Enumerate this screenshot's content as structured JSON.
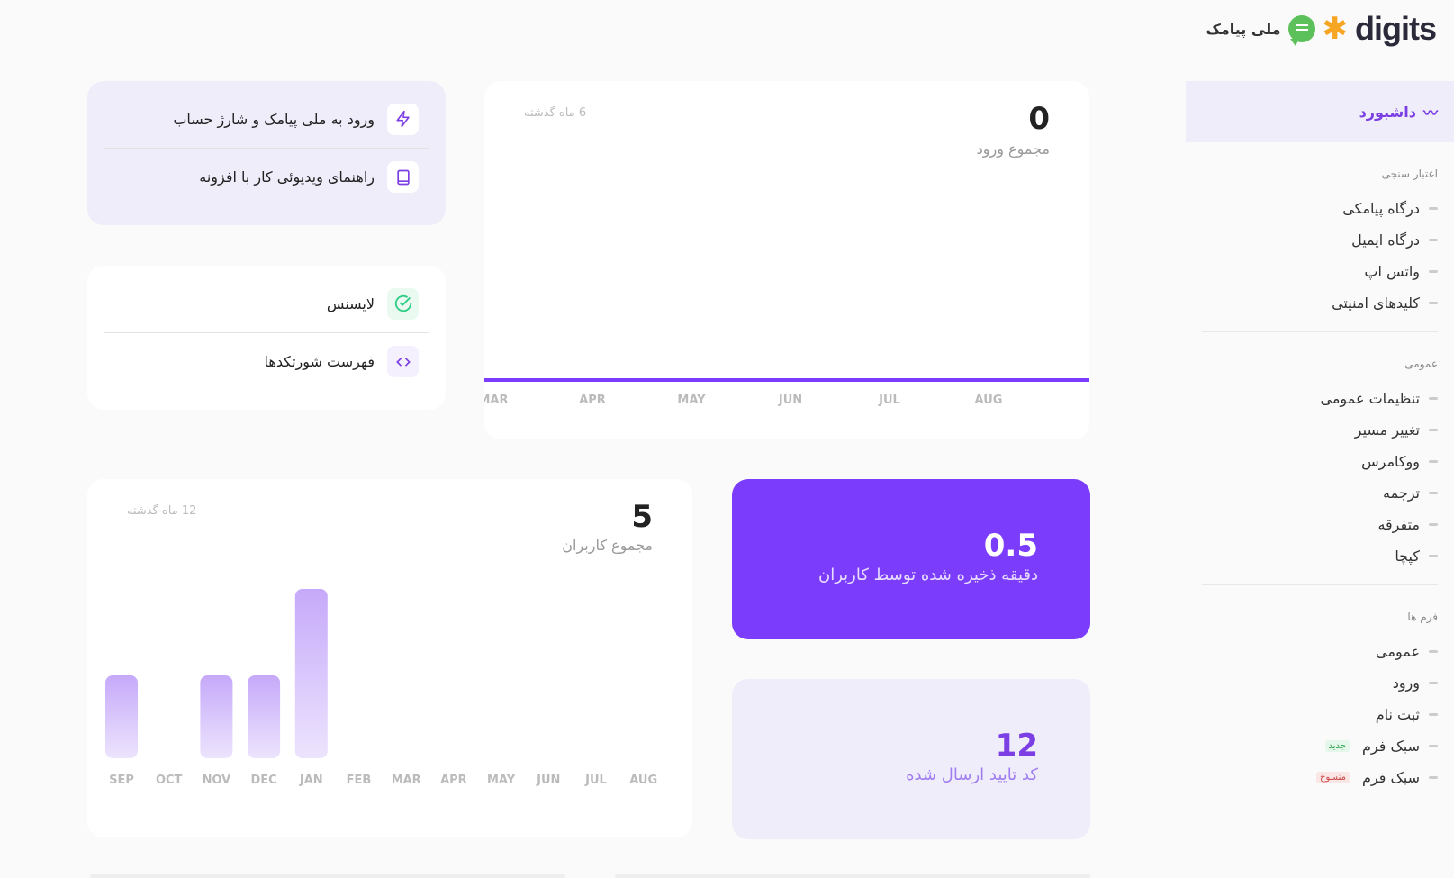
{
  "header": {
    "brand": "digits",
    "partner": "ملی پیامک"
  },
  "sidebar": {
    "active": "داشبورد",
    "sections": [
      {
        "title": "اعتبار سنجی",
        "items": [
          {
            "label": "درگاه پیامکی"
          },
          {
            "label": "درگاه ایمیل"
          },
          {
            "label": "واتس اپ"
          },
          {
            "label": "کلیدهای امنیتی"
          }
        ]
      },
      {
        "title": "عمومی",
        "items": [
          {
            "label": "تنظیمات عمومی"
          },
          {
            "label": "تغییر مسیر"
          },
          {
            "label": "ووکامرس"
          },
          {
            "label": "ترجمه"
          },
          {
            "label": "متفرقه"
          },
          {
            "label": "کپچا"
          }
        ]
      },
      {
        "title": "فرم ها",
        "items": [
          {
            "label": "عمومی"
          },
          {
            "label": "ورود"
          },
          {
            "label": "ثبت نام"
          },
          {
            "label": "سبک فرم",
            "badge": "جدید"
          },
          {
            "label": "سبک فرم",
            "badge": "منسوخ"
          }
        ]
      }
    ]
  },
  "quick_links": [
    {
      "label": "ورود به ملی پیامک و شارژ حساب",
      "icon": "bolt-icon"
    },
    {
      "label": "راهنمای ویدیوئی کار با افزونه",
      "icon": "book-icon"
    }
  ],
  "info_links": [
    {
      "label": "لایسنس",
      "icon": "check-circle-icon"
    },
    {
      "label": "فهرست شورتکدها",
      "icon": "code-icon"
    }
  ],
  "logins": {
    "value": "0",
    "label": "مجموع ورود",
    "period": "6 ماه گذشته"
  },
  "users": {
    "value": "5",
    "label": "مجموع کاربران",
    "period": "12 ماه گذشته"
  },
  "time_saved": {
    "value": "0.5",
    "label": "دقیقه ذخیره شده توسط کاربران"
  },
  "codes_sent": {
    "value": "12",
    "label": "کد تایید ارسال شده"
  },
  "colors": {
    "accent": "#7b3dfb",
    "lavender": "#f0edfb",
    "bar": "#c6a9fa"
  },
  "chart_data": [
    {
      "type": "line",
      "categories": [
        "MAR",
        "APR",
        "MAY",
        "JUN",
        "JUL",
        "AUG"
      ],
      "series": [
        {
          "values": [
            0,
            0,
            0,
            0,
            0,
            0
          ]
        }
      ]
    },
    {
      "type": "bar",
      "categories": [
        "SEP",
        "OCT",
        "NOV",
        "DEC",
        "JAN",
        "FEB",
        "MAR",
        "APR",
        "MAY",
        "JUN",
        "JUL",
        "AUG"
      ],
      "series": [
        {
          "values": [
            1,
            0,
            1,
            1,
            2,
            0,
            0,
            0,
            0,
            0,
            0,
            0
          ]
        }
      ]
    }
  ]
}
